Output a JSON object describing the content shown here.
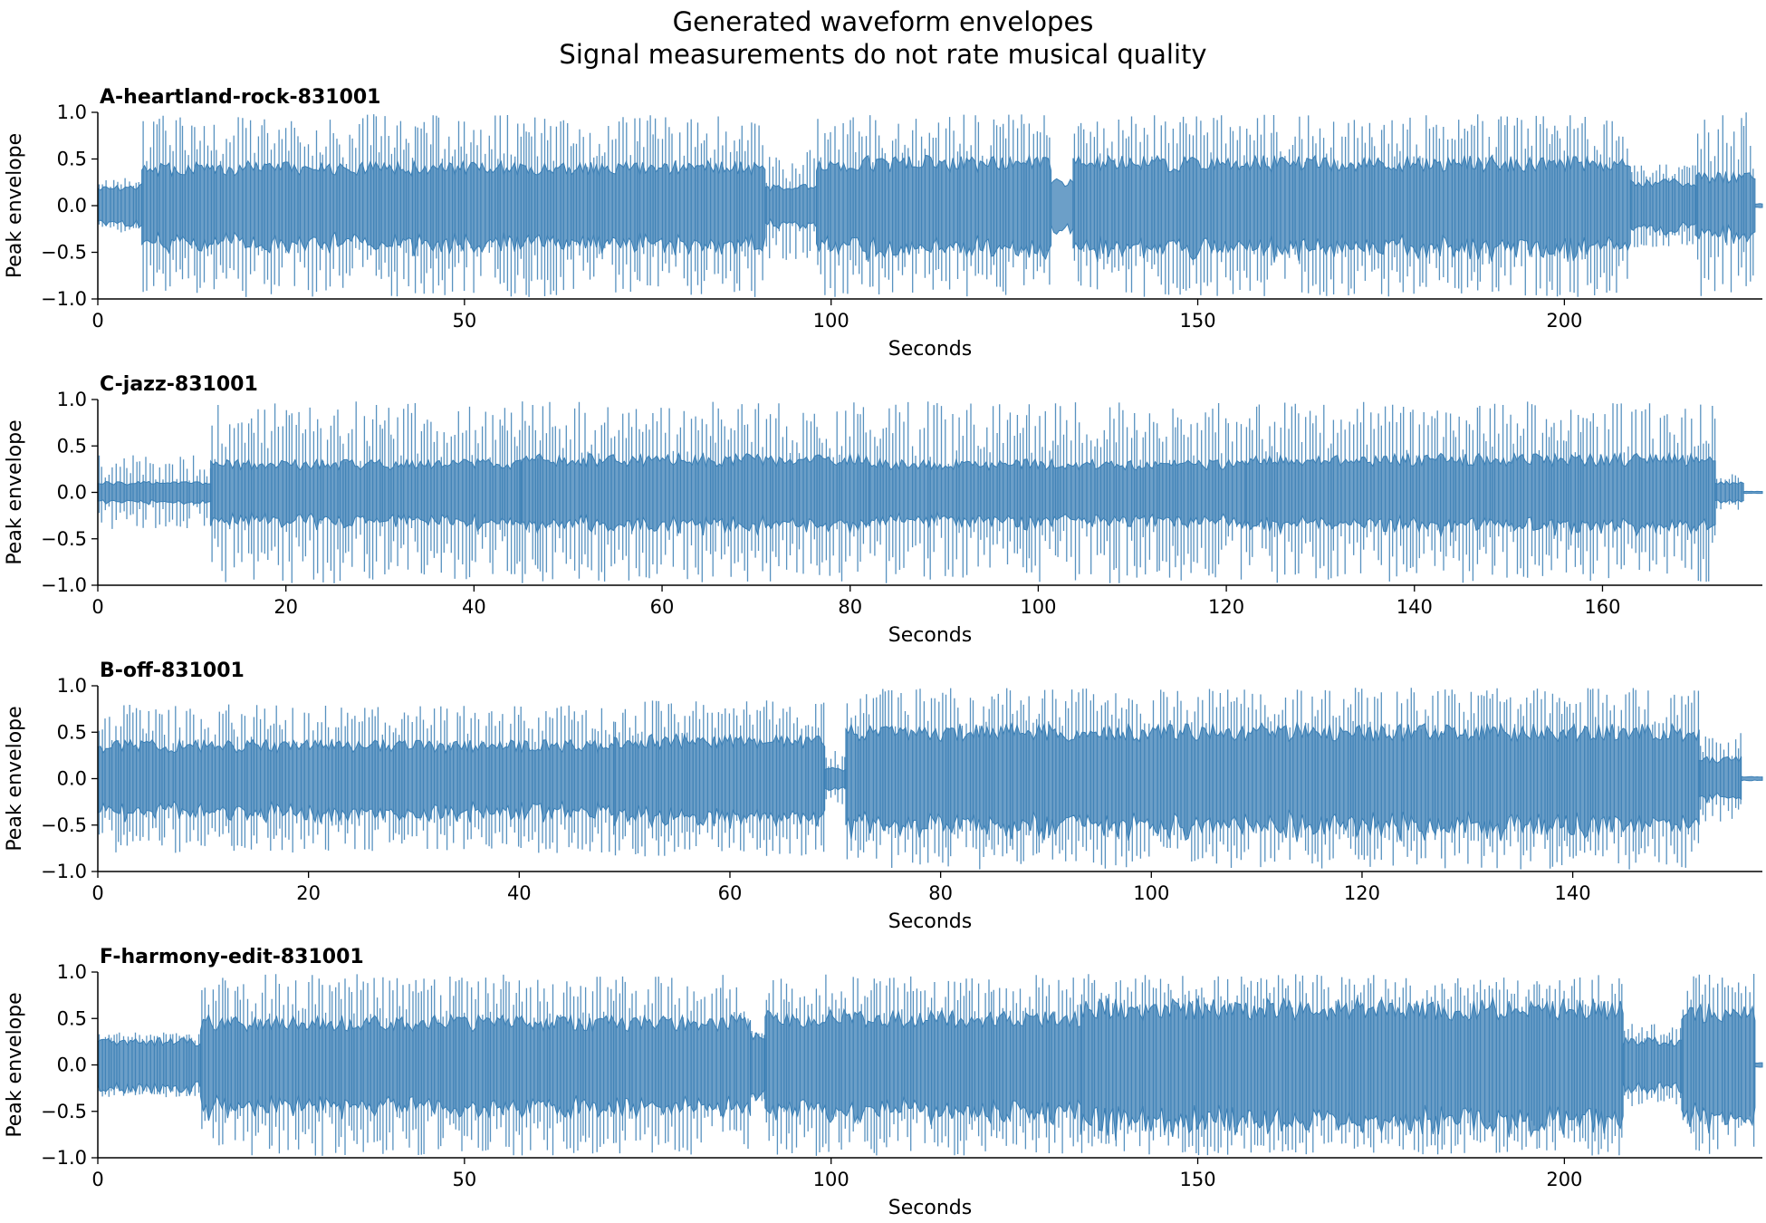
{
  "figure": {
    "title": "Generated waveform envelopes",
    "subtitle": "Signal measurements do not rate musical quality"
  },
  "colors": {
    "waveform": "#3b7fb5",
    "fill_opacity": 0.75,
    "axis": "#000000"
  },
  "chart_data": [
    {
      "type": "area",
      "title": "A-heartland-rock-831001",
      "xlabel": "Seconds",
      "ylabel": "Peak envelope",
      "xlim": [
        0,
        227
      ],
      "ylim": [
        -1.0,
        1.0
      ],
      "xticks": [
        0,
        50,
        100,
        150,
        200
      ],
      "yticks": [
        -1.0,
        -0.5,
        0.0,
        0.5,
        1.0
      ],
      "grid": false,
      "series": [
        {
          "segments": [
            {
              "t": [
                0,
                6
              ],
              "env": 0.2,
              "spike": 0.3
            },
            {
              "t": [
                6,
                91
              ],
              "env": 0.4,
              "spike": 0.98
            },
            {
              "t": [
                91,
                98
              ],
              "env": 0.2,
              "spike": 0.6
            },
            {
              "t": [
                98,
                130
              ],
              "env": 0.45,
              "spike": 0.98
            },
            {
              "t": [
                130,
                133
              ],
              "env": 0.25,
              "spike": 0.3
            },
            {
              "t": [
                133,
                209
              ],
              "env": 0.45,
              "spike": 0.98
            },
            {
              "t": [
                209,
                218
              ],
              "env": 0.25,
              "spike": 0.45
            },
            {
              "t": [
                218,
                226
              ],
              "env": 0.3,
              "spike": 1.0
            },
            {
              "t": [
                226,
                227
              ],
              "env": 0.02,
              "spike": 0.02
            }
          ]
        }
      ]
    },
    {
      "type": "area",
      "title": "C-jazz-831001",
      "xlabel": "Seconds",
      "ylabel": "Peak envelope",
      "xlim": [
        0,
        177
      ],
      "ylim": [
        -1.0,
        1.0
      ],
      "xticks": [
        0,
        20,
        40,
        60,
        80,
        100,
        120,
        140,
        160
      ],
      "yticks": [
        -1.0,
        -0.5,
        0.0,
        0.5,
        1.0
      ],
      "grid": false,
      "series": [
        {
          "segments": [
            {
              "t": [
                0,
                12
              ],
              "env": 0.1,
              "spike": 0.4
            },
            {
              "t": [
                12,
                45
              ],
              "env": 0.3,
              "spike": 0.98
            },
            {
              "t": [
                45,
                82
              ],
              "env": 0.35,
              "spike": 0.98
            },
            {
              "t": [
                82,
                122
              ],
              "env": 0.3,
              "spike": 0.98
            },
            {
              "t": [
                122,
                172
              ],
              "env": 0.35,
              "spike": 0.98
            },
            {
              "t": [
                172,
                175
              ],
              "env": 0.1,
              "spike": 0.2
            },
            {
              "t": [
                175,
                177
              ],
              "env": 0.01,
              "spike": 0.01
            }
          ]
        }
      ]
    },
    {
      "type": "area",
      "title": "B-off-831001",
      "xlabel": "Seconds",
      "ylabel": "Peak envelope",
      "xlim": [
        0,
        158
      ],
      "ylim": [
        -1.0,
        1.0
      ],
      "xticks": [
        0,
        20,
        40,
        60,
        80,
        100,
        120,
        140
      ],
      "yticks": [
        -1.0,
        -0.5,
        0.0,
        0.5,
        1.0
      ],
      "grid": false,
      "series": [
        {
          "segments": [
            {
              "t": [
                0,
                49
              ],
              "env": 0.35,
              "spike": 0.8
            },
            {
              "t": [
                49,
                69
              ],
              "env": 0.4,
              "spike": 0.85
            },
            {
              "t": [
                69,
                71
              ],
              "env": 0.1,
              "spike": 0.3
            },
            {
              "t": [
                71,
                152
              ],
              "env": 0.5,
              "spike": 0.98
            },
            {
              "t": [
                152,
                156
              ],
              "env": 0.2,
              "spike": 0.5
            },
            {
              "t": [
                156,
                158
              ],
              "env": 0.02,
              "spike": 0.02
            }
          ]
        }
      ]
    },
    {
      "type": "area",
      "title": "F-harmony-edit-831001",
      "xlabel": "Seconds",
      "ylabel": "Peak envelope",
      "xlim": [
        0,
        227
      ],
      "ylim": [
        -1.0,
        1.0
      ],
      "xticks": [
        0,
        50,
        100,
        150,
        200
      ],
      "yticks": [
        -1.0,
        -0.5,
        0.0,
        0.5,
        1.0
      ],
      "grid": false,
      "series": [
        {
          "segments": [
            {
              "t": [
                0,
                14
              ],
              "env": 0.25,
              "spike": 0.35
            },
            {
              "t": [
                14,
                89
              ],
              "env": 0.45,
              "spike": 0.98
            },
            {
              "t": [
                89,
                91
              ],
              "env": 0.3,
              "spike": 0.4
            },
            {
              "t": [
                91,
                134
              ],
              "env": 0.5,
              "spike": 0.98
            },
            {
              "t": [
                134,
                208
              ],
              "env": 0.6,
              "spike": 0.98
            },
            {
              "t": [
                208,
                216
              ],
              "env": 0.25,
              "spike": 0.45
            },
            {
              "t": [
                216,
                226
              ],
              "env": 0.55,
              "spike": 1.0
            },
            {
              "t": [
                226,
                227
              ],
              "env": 0.02,
              "spike": 0.02
            }
          ]
        }
      ]
    }
  ]
}
